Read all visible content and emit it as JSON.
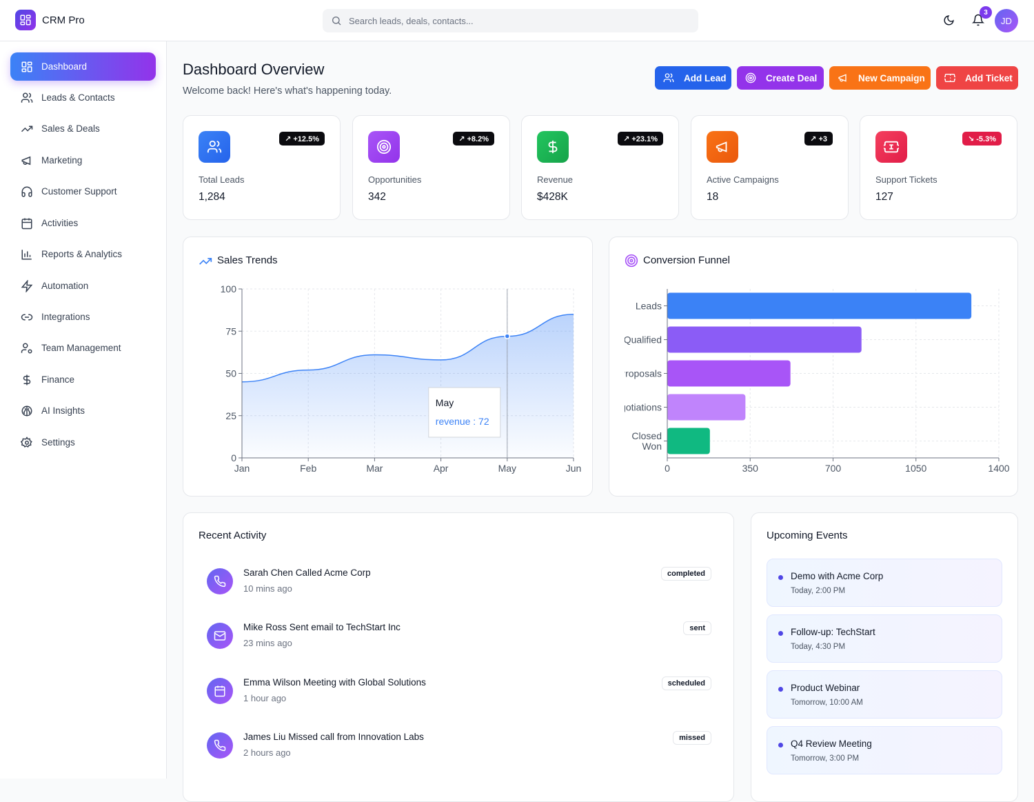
{
  "app": {
    "title": "CRM Pro"
  },
  "search": {
    "placeholder": "Search leads, deals, contacts..."
  },
  "header": {
    "notification_count": "3",
    "avatar_initials": "JD"
  },
  "sidebar": {
    "items": [
      {
        "label": "Dashboard",
        "icon": "grid-icon",
        "active": true
      },
      {
        "label": "Leads & Contacts",
        "icon": "users-icon"
      },
      {
        "label": "Sales & Deals",
        "icon": "trending-up-icon"
      },
      {
        "label": "Marketing",
        "icon": "megaphone-icon"
      },
      {
        "label": "Customer Support",
        "icon": "headphones-icon"
      },
      {
        "label": "Activities",
        "icon": "calendar-icon"
      },
      {
        "label": "Reports & Analytics",
        "icon": "bar-chart-icon"
      },
      {
        "label": "Automation",
        "icon": "zap-icon"
      },
      {
        "label": "Integrations",
        "icon": "link-icon"
      },
      {
        "label": "Team Management",
        "icon": "user-cog-icon"
      },
      {
        "label": "Finance",
        "icon": "dollar-icon"
      },
      {
        "label": "AI Insights",
        "icon": "brain-icon"
      },
      {
        "label": "Settings",
        "icon": "gear-icon"
      }
    ]
  },
  "page": {
    "title": "Dashboard Overview",
    "subtitle": "Welcome back! Here's what's happening today."
  },
  "actions": [
    {
      "label": "Add Lead",
      "color": "#2563eb"
    },
    {
      "label": "Create Deal",
      "color": "#9333ea"
    },
    {
      "label": "New Campaign",
      "color": "#f97316"
    },
    {
      "label": "Add Ticket",
      "color": "#ef4444"
    }
  ],
  "stats": [
    {
      "label": "Total Leads",
      "value": "1,284",
      "change": "↗ +12.5%",
      "color": "#2563eb"
    },
    {
      "label": "Opportunities",
      "value": "342",
      "change": "↗ +8.2%",
      "color": "#a855f7"
    },
    {
      "label": "Revenue",
      "value": "$428K",
      "change": "↗ +23.1%",
      "color": "#16a34a"
    },
    {
      "label": "Active Campaigns",
      "value": "18",
      "change": "↗ +3",
      "color": "#f97316"
    },
    {
      "label": "Support Tickets",
      "value": "127",
      "change": "↘ -5.3%",
      "color": "#e11d48"
    }
  ],
  "sales_trends": {
    "title": "Sales Trends",
    "tooltip": {
      "category": "May",
      "series": "revenue",
      "value": "72"
    }
  },
  "conversion_funnel": {
    "title": "Conversion Funnel"
  },
  "chart_data": [
    {
      "type": "area",
      "title": "Sales Trends",
      "categories": [
        "Jan",
        "Feb",
        "Mar",
        "Apr",
        "May",
        "Jun"
      ],
      "series": [
        {
          "name": "revenue",
          "values": [
            45,
            52,
            61,
            58,
            72,
            85
          ]
        }
      ],
      "ylim": [
        0,
        100
      ],
      "yticks": [
        0,
        25,
        50,
        75,
        100
      ],
      "grid": true,
      "color": "#3b82f6"
    },
    {
      "type": "bar",
      "orientation": "horizontal",
      "title": "Conversion Funnel",
      "categories": [
        "Leads",
        "Qualified",
        "Proposals",
        "Negotiations",
        "Closed Won"
      ],
      "tick_labels": [
        "Leads",
        "Qualified",
        "Proposals",
        "Negotiations",
        "Closed\nWon"
      ],
      "values": [
        1284,
        820,
        520,
        330,
        180
      ],
      "colors": [
        "#3b82f6",
        "#8b5cf6",
        "#a855f7",
        "#c084fc",
        "#10b981"
      ],
      "xlim": [
        0,
        1400
      ],
      "xticks": [
        0,
        350,
        700,
        1050,
        1400
      ],
      "grid": true
    }
  ],
  "recent_activity": {
    "title": "Recent Activity",
    "items": [
      {
        "title": "Sarah Chen Called Acme Corp",
        "time": "10 mins ago",
        "tag": "completed",
        "icon": "phone-icon"
      },
      {
        "title": "Mike Ross Sent email to TechStart Inc",
        "time": "23 mins ago",
        "tag": "sent",
        "icon": "mail-icon"
      },
      {
        "title": "Emma Wilson Meeting with Global Solutions",
        "time": "1 hour ago",
        "tag": "scheduled",
        "icon": "calendar-icon"
      },
      {
        "title": "James Liu Missed call from Innovation Labs",
        "time": "2 hours ago",
        "tag": "missed",
        "icon": "phone-icon"
      }
    ]
  },
  "upcoming_events": {
    "title": "Upcoming Events",
    "items": [
      {
        "title": "Demo with Acme Corp",
        "time": "Today, 2:00 PM"
      },
      {
        "title": "Follow-up: TechStart",
        "time": "Today, 4:30 PM"
      },
      {
        "title": "Product Webinar",
        "time": "Tomorrow, 10:00 AM"
      },
      {
        "title": "Q4 Review Meeting",
        "time": "Tomorrow, 3:00 PM"
      }
    ]
  }
}
